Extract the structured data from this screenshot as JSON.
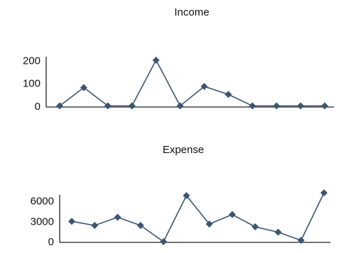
{
  "chart_data": [
    {
      "type": "line",
      "title": "Income",
      "categories": [
        null,
        null,
        null,
        null,
        null,
        null,
        null,
        null,
        null,
        null,
        null,
        null
      ],
      "values": [
        5,
        85,
        5,
        5,
        205,
        5,
        90,
        55,
        5,
        5,
        5,
        5
      ],
      "color": "#3b5671",
      "ylim": [
        0,
        220
      ],
      "yticks": [
        0,
        100,
        200
      ]
    },
    {
      "type": "line",
      "title": "Expense",
      "categories": [
        null,
        null,
        null,
        null,
        null,
        null,
        null,
        null,
        null,
        null,
        null,
        null
      ],
      "values": [
        3100,
        2500,
        3700,
        2500,
        100,
        6900,
        2700,
        4100,
        2300,
        1500,
        300,
        7300
      ],
      "color": "#3b5671",
      "ylim": [
        0,
        7000
      ],
      "yticks": [
        0,
        3000,
        6000
      ]
    }
  ]
}
